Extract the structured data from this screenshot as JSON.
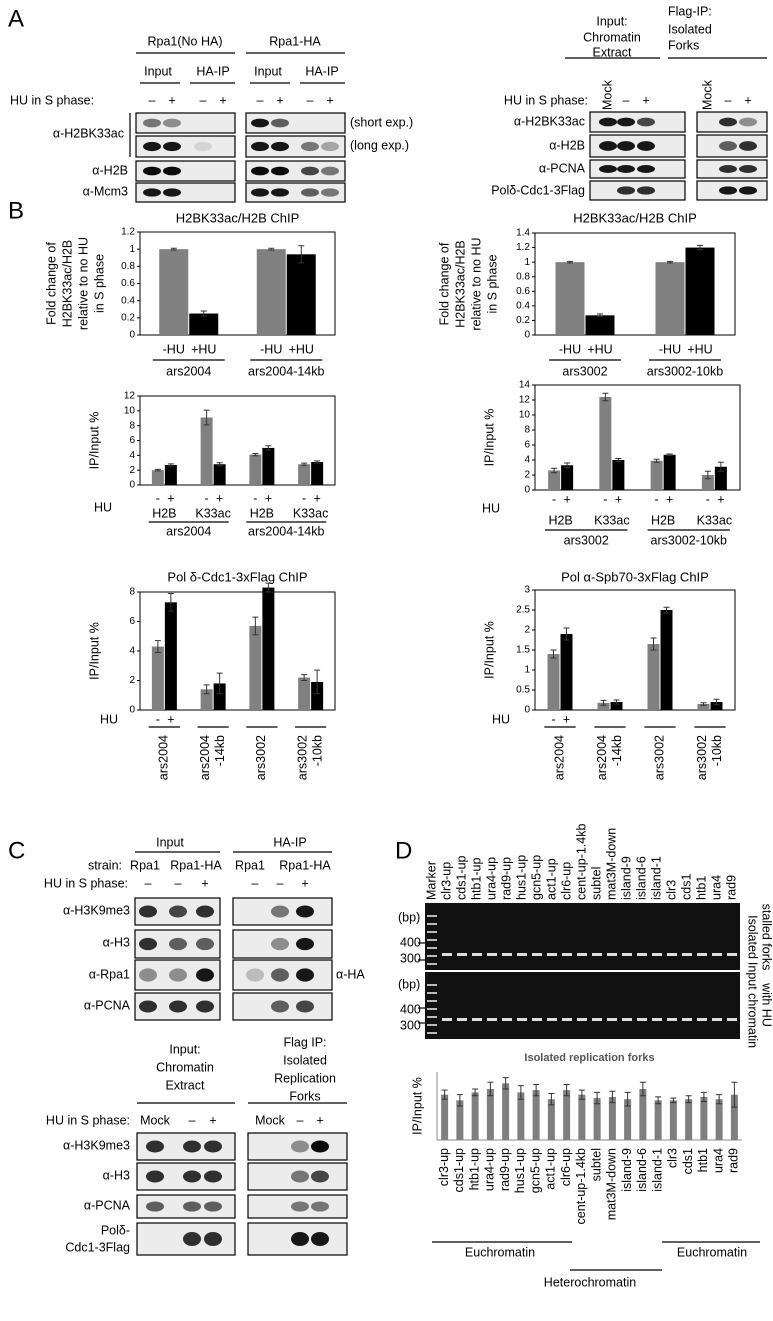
{
  "panel_a": {
    "letter": "A",
    "left": {
      "strains": [
        "Rpa1(No HA)",
        "Rpa1-HA"
      ],
      "fractions": [
        "Input",
        "HA-IP",
        "Input",
        "HA-IP"
      ],
      "hu_label": "HU in S phase:",
      "hu": [
        "–",
        "+",
        "–",
        "+",
        "–",
        "+",
        "–",
        "+"
      ],
      "antibodies": [
        "α-H2BK33ac",
        "α-H2B",
        "α-Mcm3"
      ],
      "exposures": [
        "(short exp.)",
        "(long exp.)"
      ]
    },
    "right": {
      "headers": [
        [
          "Input:",
          "Chromatin",
          "Extract"
        ],
        [
          "Flag-IP:",
          "Isolated",
          "Forks"
        ]
      ],
      "hu_label": "HU in S phase:",
      "hu": [
        "Mock",
        "–",
        "+",
        "Mock",
        "–",
        "+"
      ],
      "antibodies": [
        "α-H2BK33ac",
        "α-H2B",
        "α-PCNA",
        "Polδ-Cdc1-3Flag"
      ]
    }
  },
  "panel_b": {
    "letter": "B"
  },
  "panel_c": {
    "letter": "C",
    "top": {
      "headers": [
        "Input",
        "HA-IP"
      ],
      "strain_label": "strain:",
      "strains": [
        "Rpa1",
        "Rpa1-HA",
        "Rpa1",
        "Rpa1-HA"
      ],
      "hu_label": "HU in S phase:",
      "hu": [
        "–",
        "–",
        "+",
        "–",
        "–",
        "+"
      ],
      "antibodies": [
        "α-H3K9me3",
        "α-H3",
        "α-Rpa1",
        "α-PCNA"
      ],
      "ha_label": "α-HA"
    },
    "bottom": {
      "headers": [
        [
          "Input:",
          "Chromatin",
          "Extract"
        ],
        [
          "Flag IP:",
          "Isolated",
          "Replication",
          "Forks"
        ]
      ],
      "hu_label": "HU in S phase:",
      "hu": [
        "Mock",
        "–",
        "+",
        "Mock",
        "–",
        "+"
      ],
      "antibodies": [
        "α-H3K9me3",
        "α-H3",
        "α-PCNA",
        [
          "Polδ-",
          "Cdc1-3Flag"
        ]
      ]
    }
  },
  "panel_d": {
    "letter": "D",
    "lanes": [
      "Marker",
      "clr3-up",
      "cds1-up",
      "htb1-up",
      "ura4-up",
      "rad9-up",
      "hus1-up",
      "gcn5-up",
      "act1-up",
      "clr6-up",
      "cent-up-1.4kb",
      "subtel",
      "mat3M-down",
      "island-9",
      "island-6",
      "island-1",
      "clr3",
      "cds1",
      "htb1",
      "ura4",
      "rad9"
    ],
    "bp_label": "(bp)",
    "markers": [
      400,
      300
    ],
    "gel_labels": [
      [
        "Isolated",
        "stalled forks"
      ],
      [
        "Input chromatin",
        "with HU"
      ]
    ],
    "groups": [
      "Euchromatin",
      "Heterochromatin",
      "Euchromatin"
    ]
  },
  "chart_data": [
    {
      "type": "bar",
      "title": "H2BK33ac/H2B ChIP",
      "y_label": [
        "Fold change of",
        "H2BK33ac/H2B",
        "relative to no HU",
        "in S phase"
      ],
      "categories": [
        "-HU",
        "+HU",
        "-HU",
        "+HU"
      ],
      "groups": [
        [
          "ars2004"
        ],
        [
          "ars2004-14kb"
        ]
      ],
      "values": [
        1,
        0.25,
        1,
        0.94
      ],
      "errors": [
        0.01,
        0.03,
        0.01,
        0.1
      ],
      "colors": [
        "#808080",
        "#000000",
        "#808080",
        "#000000"
      ],
      "ylim": [
        0,
        1.2
      ],
      "yticks": [
        0,
        0.2,
        0.4,
        0.6,
        0.8,
        1,
        1.2
      ]
    },
    {
      "type": "bar",
      "title": "H2BK33ac/H2B ChIP",
      "y_label": [
        "Fold change of",
        "H2BK33ac/H2B",
        "relative to no HU",
        "in S phase"
      ],
      "categories": [
        "-HU",
        "+HU",
        "-HU",
        "+HU"
      ],
      "groups": [
        [
          "ars3002"
        ],
        [
          "ars3002-10kb"
        ]
      ],
      "values": [
        1,
        0.27,
        1,
        1.2
      ],
      "errors": [
        0.01,
        0.02,
        0.01,
        0.03
      ],
      "colors": [
        "#808080",
        "#000000",
        "#808080",
        "#000000"
      ],
      "ylim": [
        0,
        1.4
      ],
      "yticks": [
        0,
        0.2,
        0.4,
        0.6,
        0.8,
        1,
        1.2,
        1.4
      ]
    },
    {
      "type": "bar",
      "y_label": [
        "IP/Input %"
      ],
      "hu_label": "HU",
      "categories": [
        "-",
        "+",
        "-",
        "+",
        "-",
        "+",
        "-",
        "+"
      ],
      "subgroups": [
        "H2B",
        "K33ac",
        "H2B",
        "K33ac"
      ],
      "groups": [
        [
          "ars2004"
        ],
        [
          "ars2004-14kb"
        ]
      ],
      "values": [
        2,
        2.7,
        9.1,
        2.8,
        4.1,
        5,
        2.8,
        3.1
      ],
      "errors": [
        0.1,
        0.15,
        1,
        0.2,
        0.15,
        0.3,
        0.15,
        0.15
      ],
      "colors": [
        "#808080",
        "#000000",
        "#808080",
        "#000000",
        "#808080",
        "#000000",
        "#808080",
        "#000000"
      ],
      "ylim": [
        0,
        12
      ],
      "yticks": [
        0,
        2,
        4,
        6,
        8,
        10,
        12
      ]
    },
    {
      "type": "bar",
      "y_label": [
        "IP/Input %"
      ],
      "hu_label": "HU",
      "categories": [
        "-",
        "+",
        "-",
        "+",
        "-",
        "+",
        "-",
        "+"
      ],
      "subgroups": [
        "H2B",
        "K33ac",
        "H2B",
        "K33ac"
      ],
      "groups": [
        [
          "ars3002"
        ],
        [
          "ars3002-10kb"
        ]
      ],
      "values": [
        2.6,
        3.3,
        12.4,
        4,
        3.9,
        4.7,
        2,
        3.1
      ],
      "errors": [
        0.3,
        0.3,
        0.5,
        0.2,
        0.2,
        0.1,
        0.5,
        0.6
      ],
      "colors": [
        "#808080",
        "#000000",
        "#808080",
        "#000000",
        "#808080",
        "#000000",
        "#808080",
        "#000000"
      ],
      "ylim": [
        0,
        14
      ],
      "yticks": [
        0,
        2,
        4,
        6,
        8,
        10,
        12,
        14
      ]
    },
    {
      "type": "bar",
      "title": "Pol δ-Cdc1-3xFlag ChIP",
      "y_label": [
        "IP/Input %"
      ],
      "hu_label": "HU",
      "categories": [
        "-",
        "+",
        null,
        null,
        null,
        null,
        null,
        null
      ],
      "groups": [
        [
          "ars2004"
        ],
        [
          "ars2004",
          "-14kb"
        ],
        [
          "ars3002"
        ],
        [
          "ars3002",
          "-10kb"
        ]
      ],
      "values": [
        4.3,
        7.3,
        1.4,
        1.8,
        5.7,
        8.3,
        2.2,
        1.9
      ],
      "errors": [
        0.4,
        0.6,
        0.3,
        0.7,
        0.6,
        0.3,
        0.2,
        0.8
      ],
      "colors": [
        "#808080",
        "#000000",
        "#808080",
        "#000000",
        "#808080",
        "#000000",
        "#808080",
        "#000000"
      ],
      "ylim": [
        0,
        8
      ],
      "yticks": [
        0,
        2,
        4,
        6,
        8
      ]
    },
    {
      "type": "bar",
      "title": "Pol α-Spb70-3xFlag ChIP",
      "y_label": [
        "IP/Input %"
      ],
      "hu_label": "HU",
      "categories": [
        "-",
        "+",
        null,
        null,
        null,
        null,
        null,
        null
      ],
      "groups": [
        [
          "ars2004"
        ],
        [
          "ars2004",
          "-14kb"
        ],
        [
          "ars3002"
        ],
        [
          "ars3002",
          "-10kb"
        ]
      ],
      "values": [
        1.4,
        1.9,
        0.18,
        0.2,
        1.65,
        2.5,
        0.15,
        0.2
      ],
      "errors": [
        0.1,
        0.15,
        0.06,
        0.05,
        0.15,
        0.07,
        0.03,
        0.07
      ],
      "colors": [
        "#808080",
        "#000000",
        "#808080",
        "#000000",
        "#808080",
        "#000000",
        "#808080",
        "#000000"
      ],
      "ylim": [
        0,
        3
      ],
      "yticks": [
        0,
        0.5,
        1,
        1.5,
        2,
        2.5,
        3
      ]
    },
    {
      "type": "bar",
      "title": "Isolated replication forks",
      "y_label": [
        "IP/Input %"
      ],
      "categories": [
        "clr3-up",
        "cds1-up",
        "htb1-up",
        "ura4-up",
        "rad9-up",
        "hus1-up",
        "gcn5-up",
        "act1-up",
        "clr6-up",
        "cent-up-1.4kb",
        "subtel",
        "mat3M-down",
        "island-9",
        "island-6",
        "island-1",
        "clr3",
        "cds1",
        "htb1",
        "ura4",
        "rad9"
      ],
      "values": [
        4,
        3.5,
        4.2,
        4.5,
        5,
        4.2,
        4.4,
        3.6,
        4.4,
        4,
        3.7,
        3.8,
        3.6,
        4.5,
        3.5,
        3.5,
        3.6,
        3.8,
        3.6,
        4
      ],
      "errors": [
        0.4,
        0.5,
        0.3,
        0.6,
        0.5,
        0.6,
        0.5,
        0.5,
        0.5,
        0.4,
        0.5,
        0.5,
        0.6,
        0.6,
        0.3,
        0.2,
        0.3,
        0.4,
        0.4,
        1.1
      ],
      "color": "#7f7f7f",
      "ylim": [
        0,
        6
      ]
    }
  ]
}
